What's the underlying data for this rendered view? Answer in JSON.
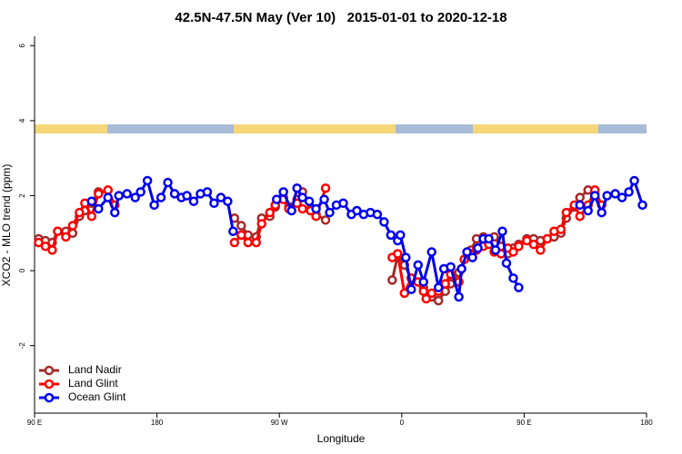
{
  "chart_data": {
    "type": "line",
    "title": "42.5N-47.5N May (Ver 10)   2015-01-01 to 2020-12-18",
    "x_label": "Longitude",
    "y_label": "XCO2 - MLO trend (ppm)",
    "xlim": [
      90,
      540
    ],
    "ylim": [
      -3.8,
      6.25
    ],
    "xticks": [
      {
        "value": 90,
        "label": "90 E"
      },
      180,
      {
        "value": 270,
        "label": "90 W"
      },
      {
        "value": 360,
        "label": "0"
      },
      {
        "value": 450,
        "label": "90 E"
      },
      {
        "value": 540,
        "label": "180"
      }
    ],
    "yticks": [
      -2,
      0,
      2,
      4,
      6
    ],
    "legend": "bottomleft",
    "series": [
      {
        "name": "Land Nadir",
        "color": "#a52a2a",
        "x": [
          93,
          98,
          103,
          107,
          113,
          118,
          123,
          127,
          132,
          137,
          null,
          237,
          242,
          247,
          253,
          257,
          263,
          267,
          273,
          277,
          283,
          287,
          293,
          297,
          304,
          null,
          353,
          357,
          362,
          367,
          372,
          376,
          382,
          387,
          392,
          396,
          402,
          406,
          411,
          415,
          420,
          424,
          428,
          433,
          438,
          442,
          446,
          452,
          457,
          462,
          467,
          472,
          477,
          481,
          487,
          491,
          497,
          502
        ],
        "values": [
          0.85,
          0.8,
          0.75,
          1.05,
          1.05,
          1.0,
          1.45,
          1.6,
          1.8,
          2.1,
          null,
          1.4,
          1.2,
          0.95,
          0.9,
          1.4,
          1.45,
          1.7,
          1.95,
          1.7,
          1.9,
          2.1,
          1.65,
          1.5,
          1.35,
          null,
          -0.25,
          0.4,
          0.15,
          -0.2,
          -0.3,
          -0.45,
          -0.7,
          -0.8,
          -0.55,
          -0.35,
          -0.05,
          0.3,
          0.55,
          0.85,
          0.9,
          0.85,
          0.9,
          0.65,
          0.45,
          0.6,
          0.7,
          0.85,
          0.85,
          0.8,
          0.85,
          0.9,
          1.0,
          1.4,
          1.7,
          1.95,
          2.15,
          2.05
        ]
      },
      {
        "name": "Land Glint",
        "color": "#ff0000",
        "x": [
          93,
          98,
          103,
          107,
          113,
          118,
          123,
          127,
          132,
          137,
          144,
          149,
          null,
          237,
          242,
          247,
          253,
          257,
          263,
          267,
          273,
          277,
          283,
          287,
          293,
          297,
          304,
          null,
          353,
          357,
          362,
          367,
          372,
          376,
          378,
          382,
          387,
          392,
          396,
          402,
          406,
          411,
          415,
          420,
          424,
          428,
          433,
          438,
          442,
          446,
          452,
          457,
          462,
          467,
          472,
          477,
          481,
          487,
          491,
          497,
          502,
          507
        ],
        "values": [
          0.75,
          0.65,
          0.55,
          1.05,
          0.9,
          1.2,
          1.55,
          1.8,
          1.45,
          2.05,
          2.15,
          1.75,
          null,
          0.75,
          0.95,
          0.75,
          0.75,
          1.25,
          1.55,
          1.75,
          1.9,
          1.65,
          1.8,
          1.65,
          1.6,
          1.45,
          2.2,
          null,
          0.35,
          0.45,
          -0.6,
          -0.2,
          -0.3,
          -0.55,
          -0.75,
          -0.6,
          -0.55,
          -0.35,
          -0.1,
          -0.3,
          0.3,
          0.45,
          0.55,
          0.65,
          0.7,
          0.5,
          0.45,
          0.6,
          0.5,
          0.65,
          0.8,
          0.7,
          0.55,
          0.85,
          1.05,
          1.1,
          1.55,
          1.75,
          1.45,
          1.75,
          2.15,
          1.75
        ]
      },
      {
        "name": "Ocean Glint",
        "color": "#0000ee",
        "x": [
          132,
          137,
          144,
          149,
          152,
          158,
          164,
          168,
          173,
          178,
          183,
          188,
          193,
          198,
          202,
          207,
          212,
          217,
          222,
          227,
          232,
          236,
          null,
          268,
          273,
          279,
          283,
          287,
          292,
          297,
          303,
          307,
          312,
          317,
          323,
          327,
          332,
          337,
          342,
          347,
          352,
          357,
          359,
          363,
          367,
          372,
          376,
          382,
          387,
          391,
          396,
          402,
          404,
          408,
          412,
          416,
          420,
          424,
          429,
          434,
          437,
          442,
          446,
          null,
          491,
          497,
          502,
          507,
          511,
          517,
          522,
          527,
          531,
          537
        ],
        "values": [
          1.85,
          1.65,
          1.95,
          1.55,
          2.0,
          2.05,
          1.95,
          2.1,
          2.4,
          1.75,
          1.95,
          2.35,
          2.05,
          1.95,
          2.0,
          1.85,
          2.05,
          2.1,
          1.8,
          1.95,
          1.85,
          1.05,
          null,
          1.9,
          2.1,
          1.6,
          2.2,
          1.95,
          1.85,
          1.65,
          1.9,
          1.55,
          1.75,
          1.8,
          1.5,
          1.6,
          1.5,
          1.55,
          1.5,
          1.3,
          0.95,
          0.8,
          0.95,
          0.35,
          -0.5,
          0.15,
          -0.3,
          0.5,
          -0.45,
          0.05,
          0.1,
          -0.7,
          0.05,
          0.5,
          0.35,
          0.6,
          0.85,
          0.85,
          0.55,
          1.05,
          0.2,
          -0.2,
          -0.45,
          null,
          1.75,
          1.6,
          2.0,
          1.55,
          2.0,
          2.05,
          1.95,
          2.1,
          2.4,
          1.75
        ]
      }
    ]
  }
}
